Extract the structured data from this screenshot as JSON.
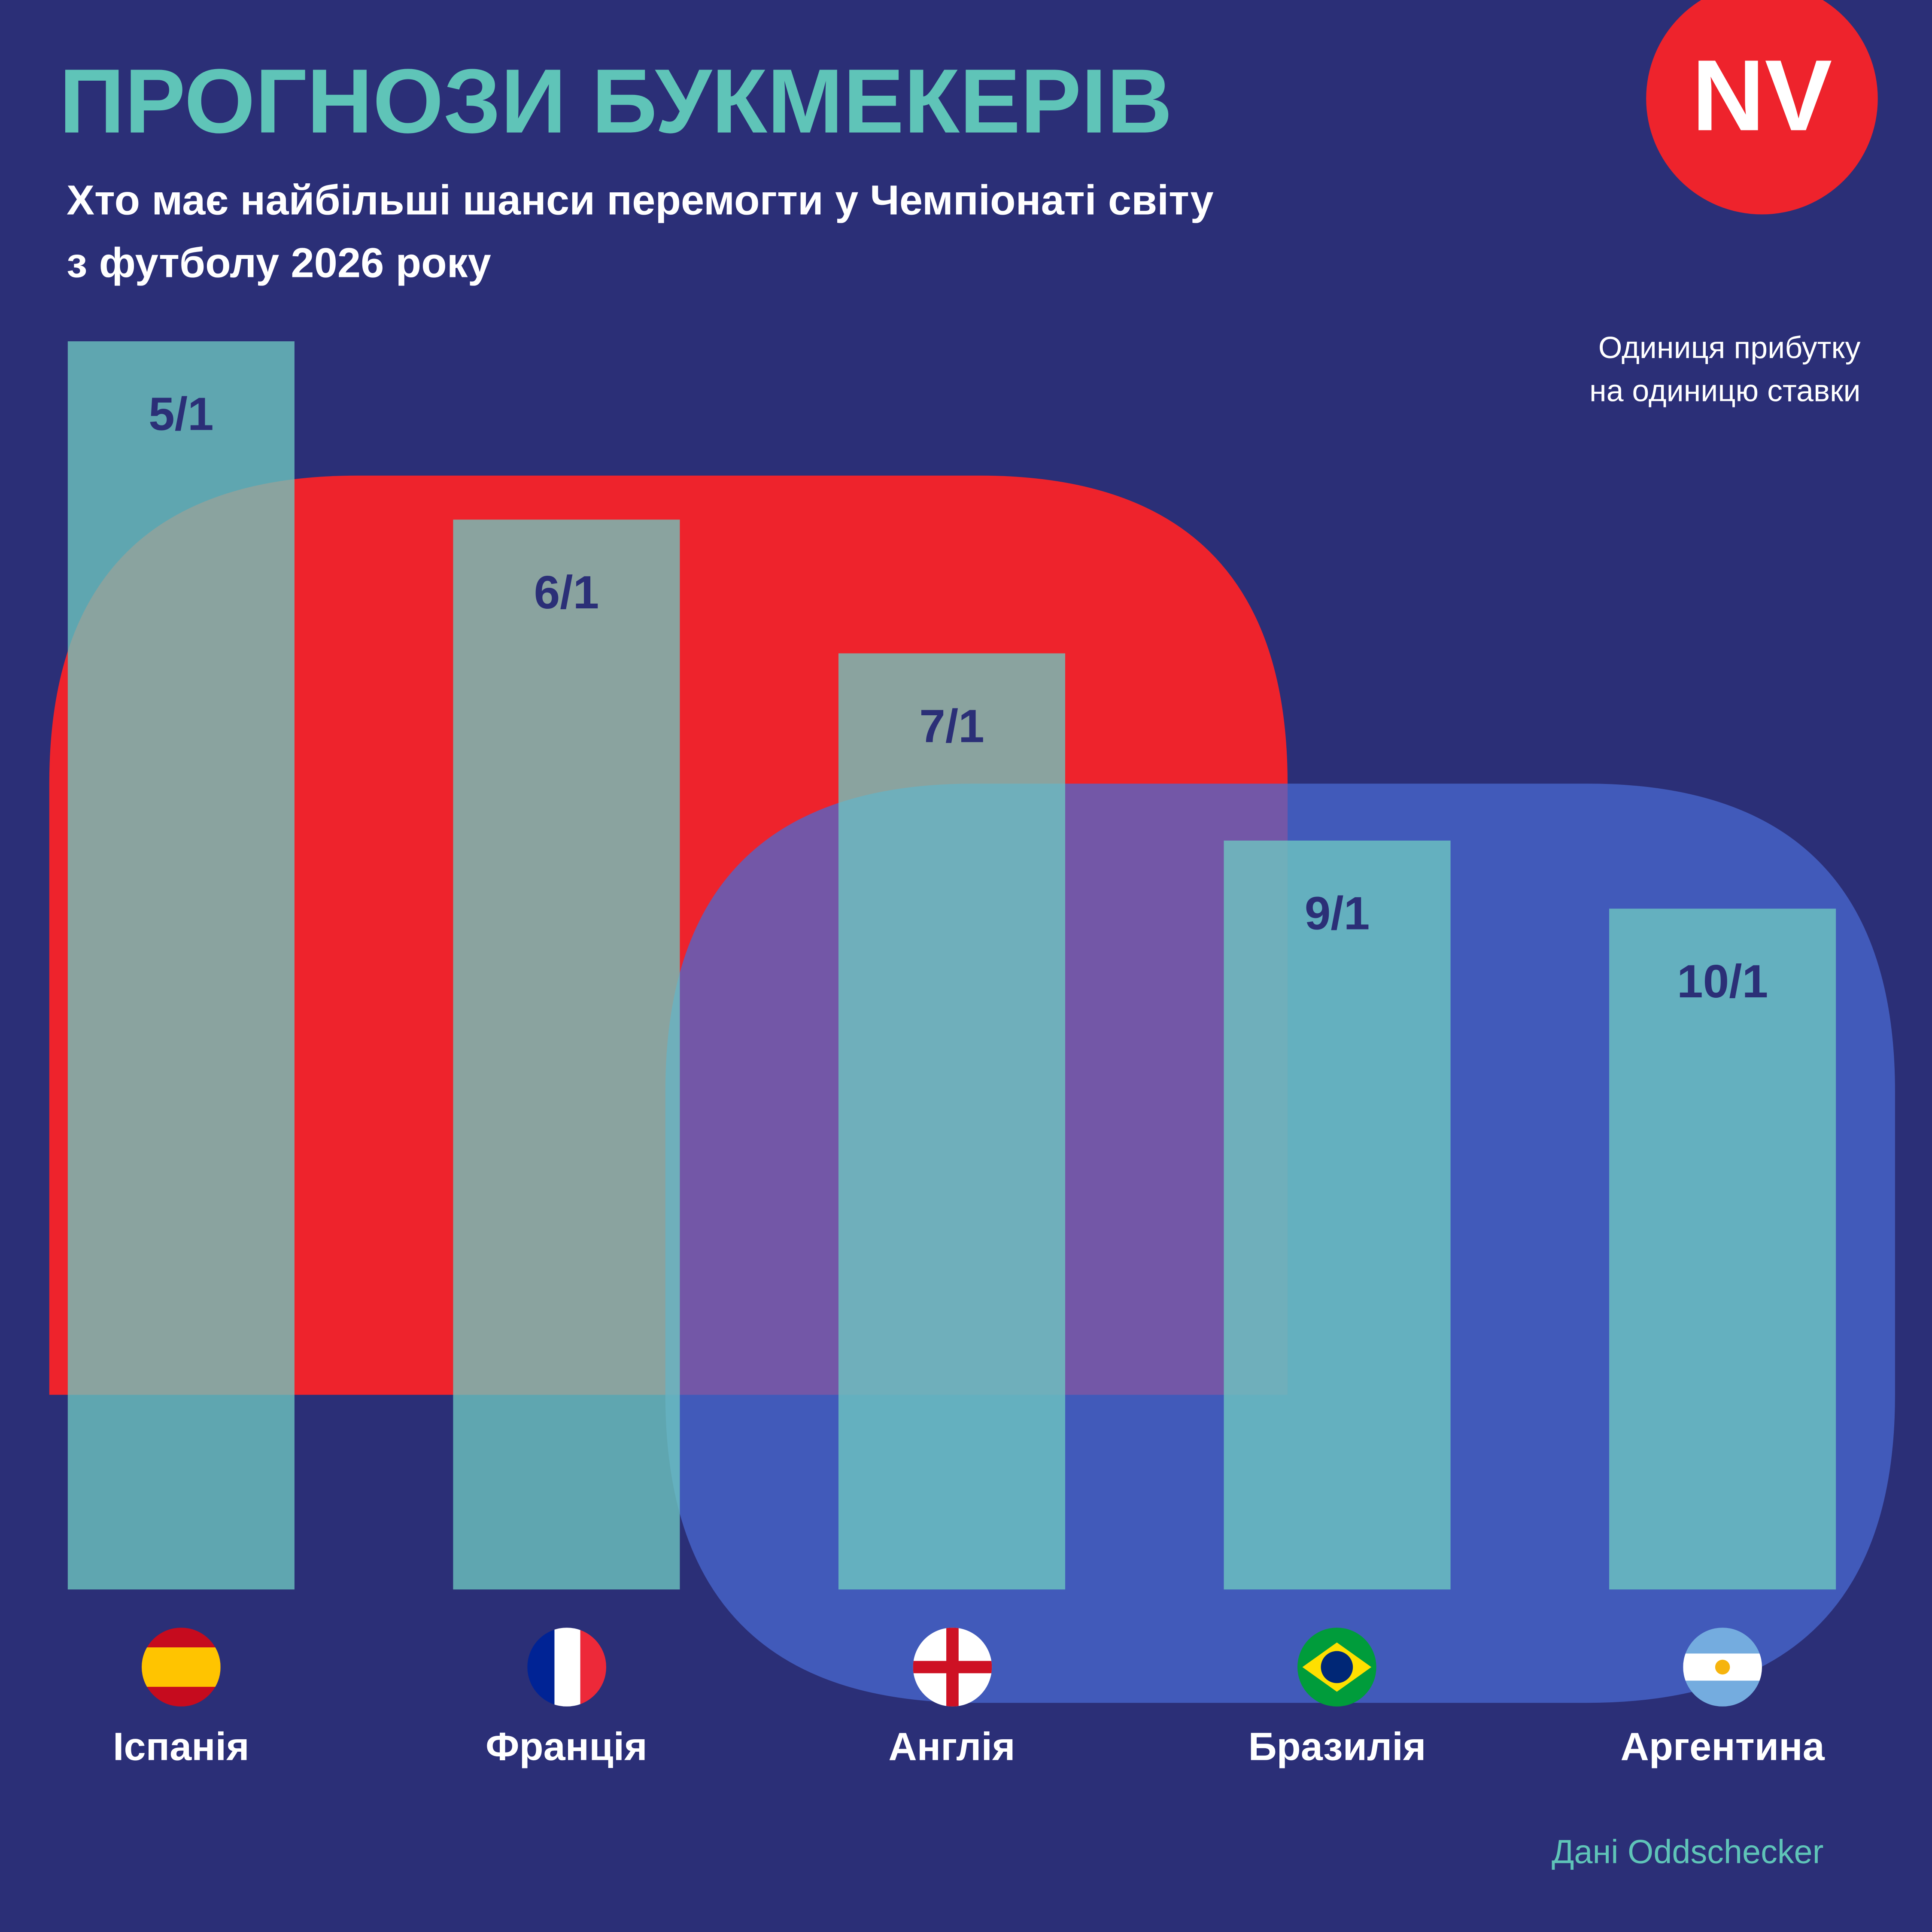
{
  "logo": "NV",
  "chart_data": {
    "type": "bar",
    "title": "ПРОГНОЗИ БУКМЕКЕРІВ",
    "subtitle": [
      "Хто має найбільші шанси перемогти у Чемпіонаті світу",
      "з футболу 2026 року"
    ],
    "unit_note": [
      "Одиниця прибутку",
      "на одиницю ставки"
    ],
    "source": "Дані Oddschecker",
    "categories": [
      "Іспанія",
      "Франція",
      "Англія",
      "Бразилія",
      "Аргентина"
    ],
    "values": [
      5,
      6,
      7,
      9,
      10
    ],
    "value_labels": [
      "5/1",
      "6/1",
      "7/1",
      "9/1",
      "10/1"
    ],
    "color": "#6ec8c0"
  }
}
